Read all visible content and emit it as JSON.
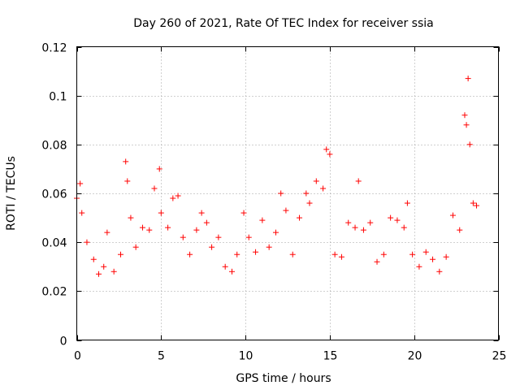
{
  "chart_data": {
    "type": "scatter",
    "title": "Day 260 of 2021, Rate Of TEC Index for receiver ssia",
    "xlabel": "GPS time / hours",
    "ylabel": "ROTI / TECUs",
    "xlim": [
      0,
      25
    ],
    "ylim": [
      0,
      0.12
    ],
    "x_ticks": [
      0,
      5,
      10,
      15,
      20,
      25
    ],
    "x_tick_labels": [
      "0",
      "5",
      "10",
      "15",
      "20",
      "25"
    ],
    "y_ticks": [
      0,
      0.02,
      0.04,
      0.06,
      0.08,
      0.1,
      0.12
    ],
    "y_tick_labels": [
      "0",
      "0.02",
      "0.04",
      "0.06",
      "0.08",
      "0.1",
      "0.12"
    ],
    "grid": true,
    "marker": "plus",
    "color": "#ff0000",
    "series": [
      {
        "x": [
          0.0,
          0.2,
          0.3,
          0.6,
          1.0,
          1.3,
          1.6,
          1.8,
          2.2,
          2.6,
          2.9,
          3.0,
          3.2,
          3.5,
          3.9,
          4.3,
          4.6,
          4.9,
          5.0,
          5.4,
          5.7,
          6.0,
          6.3,
          6.7,
          7.1,
          7.4,
          7.7,
          8.0,
          8.4,
          8.8,
          9.2,
          9.5,
          9.9,
          10.2,
          10.6,
          11.0,
          11.4,
          11.8,
          12.1,
          12.4,
          12.8,
          13.2,
          13.6,
          13.8,
          14.2,
          14.6,
          14.8,
          15.0,
          15.3,
          15.7,
          16.1,
          16.5,
          16.7,
          17.0,
          17.4,
          17.8,
          18.2,
          18.6,
          19.0,
          19.4,
          19.6,
          19.9,
          20.3,
          20.7,
          21.1,
          21.5,
          21.9,
          22.3,
          22.7,
          23.0,
          23.1,
          23.2,
          23.3,
          23.5,
          23.7
        ],
        "y": [
          0.058,
          0.064,
          0.052,
          0.04,
          0.033,
          0.027,
          0.03,
          0.044,
          0.028,
          0.035,
          0.073,
          0.065,
          0.05,
          0.038,
          0.046,
          0.045,
          0.062,
          0.07,
          0.052,
          0.046,
          0.058,
          0.059,
          0.042,
          0.035,
          0.045,
          0.052,
          0.048,
          0.038,
          0.042,
          0.03,
          0.028,
          0.035,
          0.052,
          0.042,
          0.036,
          0.049,
          0.038,
          0.044,
          0.06,
          0.053,
          0.035,
          0.05,
          0.06,
          0.056,
          0.065,
          0.062,
          0.078,
          0.076,
          0.035,
          0.034,
          0.048,
          0.046,
          0.065,
          0.045,
          0.048,
          0.032,
          0.035,
          0.05,
          0.049,
          0.046,
          0.056,
          0.035,
          0.03,
          0.036,
          0.033,
          0.028,
          0.034,
          0.051,
          0.045,
          0.092,
          0.088,
          0.107,
          0.08,
          0.056,
          0.055
        ]
      }
    ]
  }
}
